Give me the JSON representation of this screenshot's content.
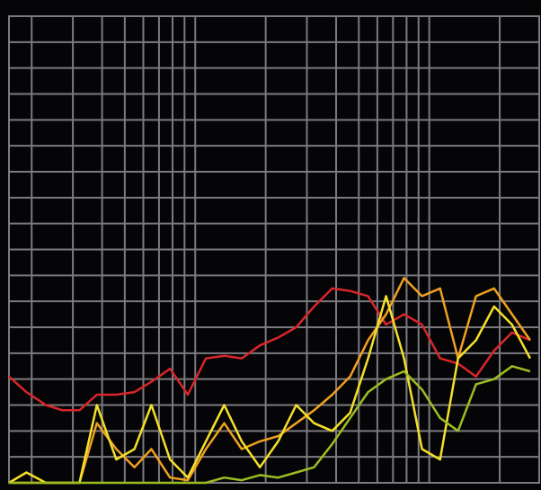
{
  "chart_data": {
    "type": "line",
    "log_x": true,
    "grid": true,
    "background": "#050507",
    "grid_color": "#7a7a80",
    "xlim": [
      16,
      2950
    ],
    "ylim": [
      0,
      18
    ],
    "xticks": [
      20,
      30,
      40,
      50,
      60,
      70,
      80,
      90,
      100,
      200,
      300,
      400,
      500,
      600,
      700,
      800,
      900,
      1000,
      2000
    ],
    "yticks": [
      0,
      1,
      2,
      3,
      4,
      5,
      6,
      7,
      8,
      9,
      10,
      11,
      12,
      13,
      14,
      15,
      16,
      17,
      18
    ],
    "x": [
      16,
      19,
      23,
      27,
      32,
      38,
      46,
      55,
      65,
      78,
      93,
      111,
      133,
      158,
      189,
      226,
      270,
      322,
      385,
      459,
      548,
      654,
      780,
      931,
      1112,
      1327,
      1585,
      1892,
      2259,
      2698
    ],
    "series": [
      {
        "color": "#d8262a",
        "values": [
          4.1,
          3.5,
          3.0,
          2.8,
          2.8,
          3.4,
          3.4,
          3.5,
          3.9,
          4.4,
          3.4,
          4.8,
          4.9,
          4.8,
          5.3,
          5.6,
          6.0,
          6.8,
          7.5,
          7.4,
          7.2,
          6.1,
          6.5,
          6.1,
          4.8,
          4.6,
          4.1,
          5.1,
          5.8,
          5.5
        ]
      },
      {
        "color": "#f0a020",
        "values": [
          0,
          0,
          0,
          0,
          0,
          2.3,
          1.3,
          0.6,
          1.3,
          0.2,
          0.1,
          1.3,
          2.3,
          1.3,
          1.6,
          1.8,
          2.3,
          2.8,
          3.4,
          4.1,
          5.5,
          6.5,
          7.9,
          7.2,
          7.5,
          4.8,
          7.2,
          7.5,
          6.5,
          5.5
        ]
      },
      {
        "color": "#f4e028",
        "values": [
          0,
          0.4,
          0,
          0,
          0,
          3.0,
          0.9,
          1.3,
          3.0,
          0.9,
          0.2,
          1.6,
          3.0,
          1.6,
          0.6,
          1.6,
          3.0,
          2.3,
          2.0,
          2.7,
          4.8,
          7.2,
          4.8,
          1.3,
          0.9,
          4.8,
          5.5,
          6.8,
          6.1,
          4.8
        ]
      },
      {
        "color": "#9cbd22",
        "values": [
          0,
          0,
          0,
          0,
          0,
          0,
          0,
          0,
          0,
          0,
          0,
          0,
          0.2,
          0.1,
          0.3,
          0.2,
          0.4,
          0.6,
          1.5,
          2.5,
          3.5,
          4.0,
          4.3,
          3.6,
          2.5,
          2.0,
          3.8,
          4.0,
          4.5,
          4.3
        ]
      }
    ]
  }
}
